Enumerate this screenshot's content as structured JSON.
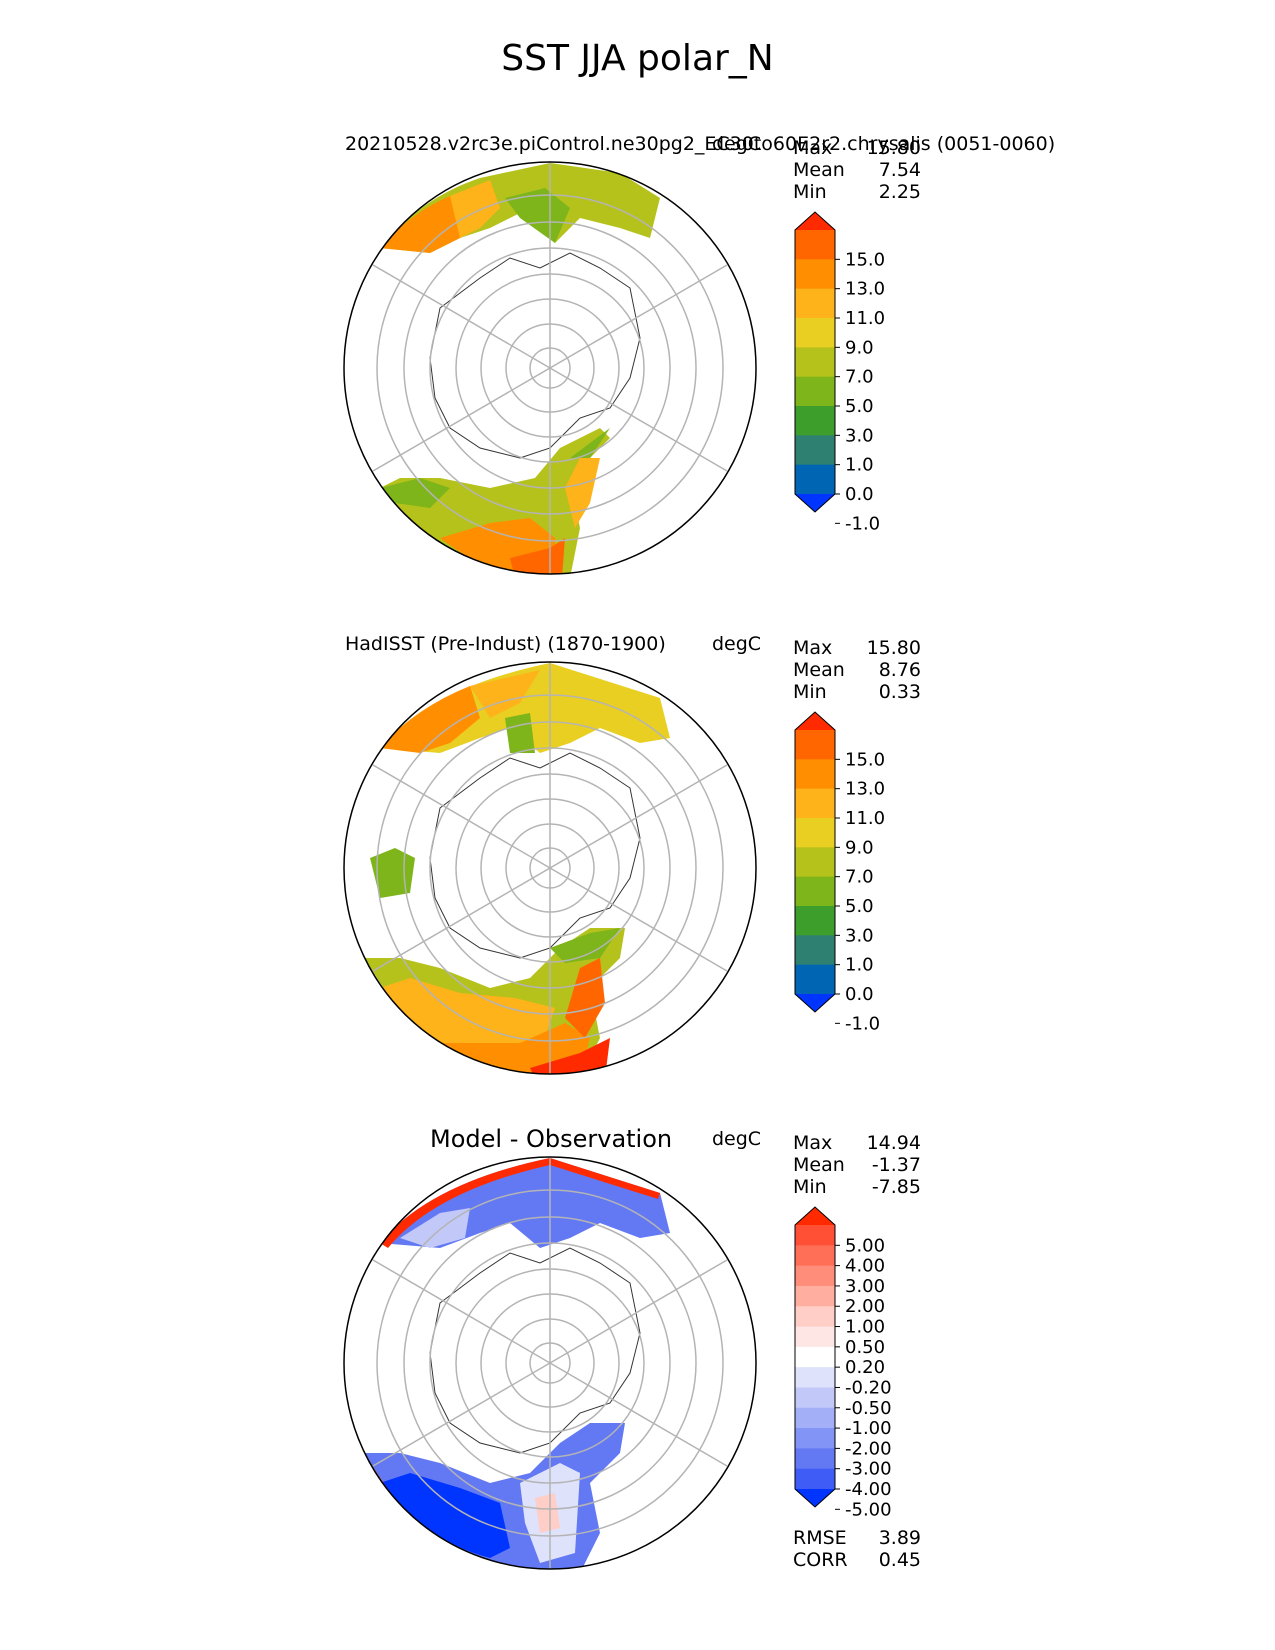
{
  "figure": {
    "title": "SST JJA polar_N"
  },
  "panels": [
    {
      "id": "model",
      "title_left": "20210528.v2rc3e.piControl.ne30pg2_EC30to60E2r2.chrysalis (0051-0060)",
      "title_right": "degC",
      "title_center": "",
      "stats": {
        "max_label": "Max",
        "max": "15.80",
        "mean_label": "Mean",
        "mean": "7.54",
        "min_label": "Min",
        "min": "2.25"
      },
      "colorbar": {
        "ticks": [
          "15.0",
          "13.0",
          "11.0",
          "9.0",
          "7.0",
          "5.0",
          "3.0",
          "1.0",
          "0.0",
          "-1.0"
        ],
        "colors_top_to_bottom": [
          "#ff2a00",
          "#ff6600",
          "#ff8f00",
          "#ffb31a",
          "#e8cf22",
          "#b5c21c",
          "#7db51a",
          "#3d9e2c",
          "#2e8070",
          "#0065b3",
          "#0035ff"
        ]
      }
    },
    {
      "id": "obs",
      "title_left": "HadISST (Pre-Indust) (1870-1900)",
      "title_right": "degC",
      "title_center": "",
      "stats": {
        "max_label": "Max",
        "max": "15.80",
        "mean_label": "Mean",
        "mean": "8.76",
        "min_label": "Min",
        "min": "0.33"
      },
      "colorbar": {
        "ticks": [
          "15.0",
          "13.0",
          "11.0",
          "9.0",
          "7.0",
          "5.0",
          "3.0",
          "1.0",
          "0.0",
          "-1.0"
        ],
        "colors_top_to_bottom": [
          "#ff2a00",
          "#ff6600",
          "#ff8f00",
          "#ffb31a",
          "#e8cf22",
          "#b5c21c",
          "#7db51a",
          "#3d9e2c",
          "#2e8070",
          "#0065b3",
          "#0035ff"
        ]
      }
    },
    {
      "id": "diff",
      "title_left": "",
      "title_right": "degC",
      "title_center": "Model - Observation",
      "stats": {
        "max_label": "Max",
        "max": "14.94",
        "mean_label": "Mean",
        "mean": "-1.37",
        "min_label": "Min",
        "min": "-7.85"
      },
      "extra_stats": {
        "rmse_label": "RMSE",
        "rmse": "3.89",
        "corr_label": "CORR",
        "corr": "0.45"
      },
      "colorbar": {
        "ticks": [
          "5.00",
          "4.00",
          "3.00",
          "2.00",
          "1.00",
          "0.50",
          "0.20",
          "-0.20",
          "-0.50",
          "-1.00",
          "-2.00",
          "-3.00",
          "-4.00",
          "-5.00"
        ],
        "colors_top_to_bottom": [
          "#ff2a00",
          "#ff5036",
          "#ff6e57",
          "#ff8d7a",
          "#ffaea0",
          "#ffcec6",
          "#fde6e3",
          "#ffffff",
          "#dfe2fb",
          "#c2c9f8",
          "#a3aff6",
          "#8294f5",
          "#6379f4",
          "#3f5cf7",
          "#0035ff"
        ]
      }
    }
  ]
}
